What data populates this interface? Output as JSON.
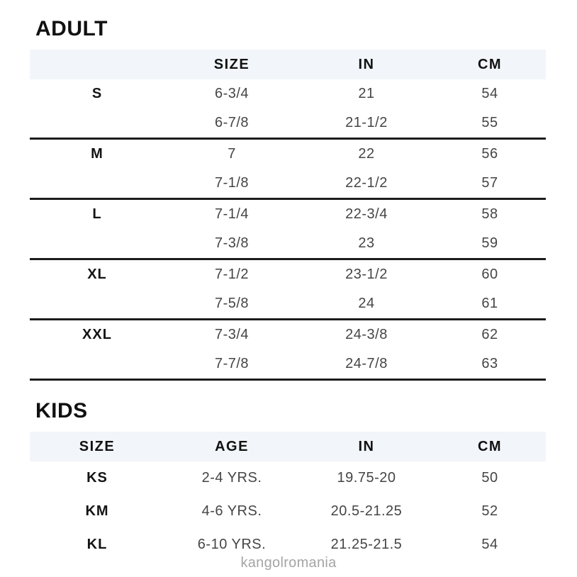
{
  "colors": {
    "header_band": "#f2f5f9",
    "heading_text": "#111111",
    "data_text": "#454545",
    "divider": "#1c1c1c",
    "watermark_text": "#a5a5a5"
  },
  "adult": {
    "heading": "ADULT",
    "headers": {
      "label": "",
      "size": "SIZE",
      "in": "IN",
      "cm": "CM"
    },
    "rows": [
      {
        "label": "S",
        "size": "6-3/4",
        "in": "21",
        "cm": "54"
      },
      {
        "label": "",
        "size": "6-7/8",
        "in": "21-1/2",
        "cm": "55"
      },
      {
        "label": "M",
        "size": "7",
        "in": "22",
        "cm": "56"
      },
      {
        "label": "",
        "size": "7-1/8",
        "in": "22-1/2",
        "cm": "57"
      },
      {
        "label": "L",
        "size": "7-1/4",
        "in": "22-3/4",
        "cm": "58"
      },
      {
        "label": "",
        "size": "7-3/8",
        "in": "23",
        "cm": "59"
      },
      {
        "label": "XL",
        "size": "7-1/2",
        "in": "23-1/2",
        "cm": "60"
      },
      {
        "label": "",
        "size": "7-5/8",
        "in": "24",
        "cm": "61"
      },
      {
        "label": "XXL",
        "size": "7-3/4",
        "in": "24-3/8",
        "cm": "62"
      },
      {
        "label": "",
        "size": "7-7/8",
        "in": "24-7/8",
        "cm": "63"
      }
    ]
  },
  "kids": {
    "heading": "KIDS",
    "headers": {
      "size": "SIZE",
      "age": "AGE",
      "in": "IN",
      "cm": "CM"
    },
    "rows": [
      {
        "size": "KS",
        "age": "2-4 YRS.",
        "in": "19.75-20",
        "cm": "50"
      },
      {
        "size": "KM",
        "age": "4-6 YRS.",
        "in": "20.5-21.25",
        "cm": "52"
      },
      {
        "size": "KL",
        "age": "6-10 YRS.",
        "in": "21.25-21.5",
        "cm": "54"
      }
    ]
  },
  "watermark": "kangolromania"
}
